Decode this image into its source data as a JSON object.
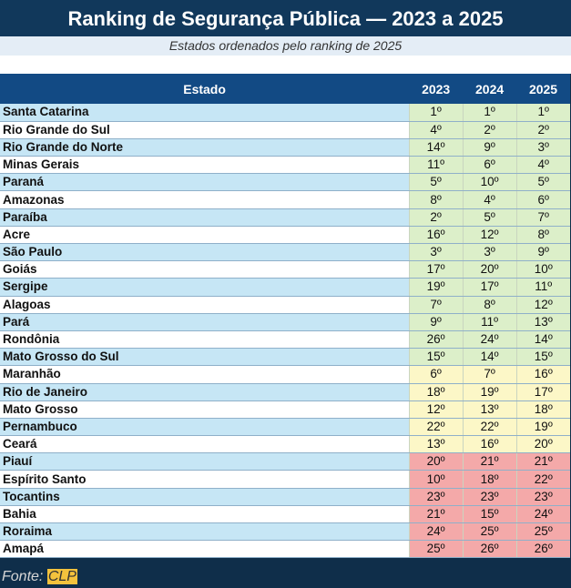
{
  "title": "Ranking de Segurança Pública — 2023 a 2025",
  "subtitle": "Estados ordenados pelo ranking de 2025",
  "table": {
    "headers": [
      "Estado",
      "2023",
      "2024",
      "2025"
    ],
    "rows": [
      {
        "state": "Santa Catarina",
        "v": [
          "1º",
          "1º",
          "1º"
        ],
        "tier": "g"
      },
      {
        "state": "Rio Grande do Sul",
        "v": [
          "4º",
          "2º",
          "2º"
        ],
        "tier": "g"
      },
      {
        "state": "Rio Grande do Norte",
        "v": [
          "14º",
          "9º",
          "3º"
        ],
        "tier": "g"
      },
      {
        "state": "Minas Gerais",
        "v": [
          "11º",
          "6º",
          "4º"
        ],
        "tier": "g"
      },
      {
        "state": "Paraná",
        "v": [
          "5º",
          "10º",
          "5º"
        ],
        "tier": "g"
      },
      {
        "state": "Amazonas",
        "v": [
          "8º",
          "4º",
          "6º"
        ],
        "tier": "g"
      },
      {
        "state": "Paraíba",
        "v": [
          "2º",
          "5º",
          "7º"
        ],
        "tier": "g"
      },
      {
        "state": "Acre",
        "v": [
          "16º",
          "12º",
          "8º"
        ],
        "tier": "g"
      },
      {
        "state": "São Paulo",
        "v": [
          "3º",
          "3º",
          "9º"
        ],
        "tier": "g"
      },
      {
        "state": "Goiás",
        "v": [
          "17º",
          "20º",
          "10º"
        ],
        "tier": "g"
      },
      {
        "state": "Sergipe",
        "v": [
          "19º",
          "17º",
          "11º"
        ],
        "tier": "g"
      },
      {
        "state": "Alagoas",
        "v": [
          "7º",
          "8º",
          "12º"
        ],
        "tier": "g"
      },
      {
        "state": "Pará",
        "v": [
          "9º",
          "11º",
          "13º"
        ],
        "tier": "g"
      },
      {
        "state": "Rondônia",
        "v": [
          "26º",
          "24º",
          "14º"
        ],
        "tier": "g"
      },
      {
        "state": "Mato Grosso do Sul",
        "v": [
          "15º",
          "14º",
          "15º"
        ],
        "tier": "g"
      },
      {
        "state": "Maranhão",
        "v": [
          "6º",
          "7º",
          "16º"
        ],
        "tier": "y"
      },
      {
        "state": "Rio de Janeiro",
        "v": [
          "18º",
          "19º",
          "17º"
        ],
        "tier": "y"
      },
      {
        "state": "Mato Grosso",
        "v": [
          "12º",
          "13º",
          "18º"
        ],
        "tier": "y"
      },
      {
        "state": "Pernambuco",
        "v": [
          "22º",
          "22º",
          "19º"
        ],
        "tier": "y"
      },
      {
        "state": "Ceará",
        "v": [
          "13º",
          "16º",
          "20º"
        ],
        "tier": "y"
      },
      {
        "state": "Piauí",
        "v": [
          "20º",
          "21º",
          "21º"
        ],
        "tier": "r"
      },
      {
        "state": "Espírito Santo",
        "v": [
          "10º",
          "18º",
          "22º"
        ],
        "tier": "r"
      },
      {
        "state": "Tocantins",
        "v": [
          "23º",
          "23º",
          "23º"
        ],
        "tier": "r"
      },
      {
        "state": "Bahia",
        "v": [
          "21º",
          "15º",
          "24º"
        ],
        "tier": "r"
      },
      {
        "state": "Roraima",
        "v": [
          "24º",
          "25º",
          "25º"
        ],
        "tier": "r"
      },
      {
        "state": "Amapá",
        "v": [
          "25º",
          "26º",
          "26º"
        ],
        "tier": "r"
      }
    ]
  },
  "footer": {
    "label": "Fonte:",
    "source": "CLP"
  },
  "colors": {
    "header_bg": "#124a84",
    "state_bg": "#c6e6f5",
    "green_tier": "#dcefc9",
    "yellow_tier": "#fcf7c7",
    "red_tier": "#f4a9a9"
  }
}
